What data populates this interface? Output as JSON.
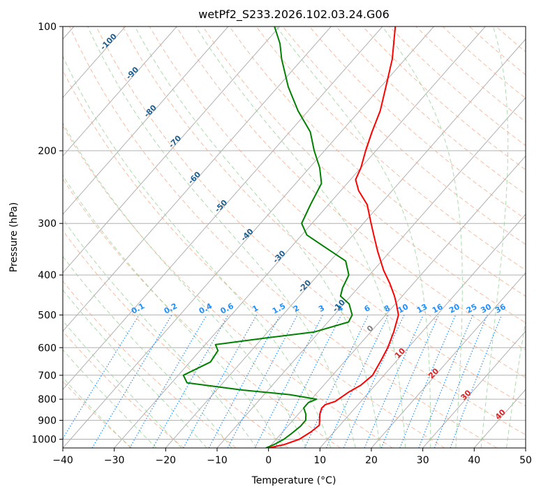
{
  "chart_data": {
    "type": "line",
    "title": "wetPf2_S233.2026.102.03.24.G06",
    "xlabel": "Temperature (°C)",
    "ylabel": "Pressure (hPa)",
    "xlim": [
      -40,
      50
    ],
    "ylim": [
      1050,
      100
    ],
    "y_scale": "log",
    "skew": "skew-T diagram",
    "x_ticks": [
      "−40",
      "−30",
      "−20",
      "−10",
      "0",
      "10",
      "20",
      "30",
      "40",
      "50"
    ],
    "y_ticks": [
      "100",
      "200",
      "300",
      "400",
      "500",
      "600",
      "700",
      "800",
      "900",
      "1000"
    ],
    "grid": true,
    "series": [
      {
        "name": "",
        "color": "#ff0000",
        "role": "temperature",
        "points": [
          [
            1050,
            0.0
          ],
          [
            1030,
            2.5
          ],
          [
            1000,
            4.5
          ],
          [
            960,
            5.5
          ],
          [
            925,
            6.0
          ],
          [
            900,
            5.2
          ],
          [
            870,
            4.2
          ],
          [
            840,
            3.5
          ],
          [
            825,
            3.6
          ],
          [
            810,
            5.0
          ],
          [
            790,
            5.5
          ],
          [
            770,
            6.0
          ],
          [
            740,
            7.2
          ],
          [
            700,
            7.8
          ],
          [
            650,
            7.0
          ],
          [
            600,
            6.0
          ],
          [
            550,
            4.5
          ],
          [
            500,
            2.5
          ],
          [
            470,
            0.2
          ],
          [
            450,
            -1.5
          ],
          [
            420,
            -4.5
          ],
          [
            390,
            -8.0
          ],
          [
            350,
            -12.5
          ],
          [
            320,
            -16.0
          ],
          [
            300,
            -18.5
          ],
          [
            270,
            -22.5
          ],
          [
            250,
            -26.5
          ],
          [
            235,
            -29.0
          ],
          [
            220,
            -30.0
          ],
          [
            200,
            -32.0
          ],
          [
            180,
            -34.0
          ],
          [
            160,
            -36.0
          ],
          [
            140,
            -39.0
          ],
          [
            120,
            -42.5
          ],
          [
            100,
            -47.5
          ]
        ]
      },
      {
        "name": "",
        "color": "#008000",
        "role": "dewpoint",
        "points": [
          [
            1050,
            -0.5
          ],
          [
            1030,
            0.5
          ],
          [
            1000,
            1.5
          ],
          [
            970,
            2.0
          ],
          [
            930,
            2.5
          ],
          [
            900,
            2.5
          ],
          [
            870,
            1.5
          ],
          [
            840,
            0.0
          ],
          [
            815,
            0.0
          ],
          [
            800,
            1.0
          ],
          [
            780,
            -5.0
          ],
          [
            760,
            -15.0
          ],
          [
            730,
            -27.0
          ],
          [
            700,
            -29.0
          ],
          [
            650,
            -26.0
          ],
          [
            610,
            -26.5
          ],
          [
            590,
            -28.0
          ],
          [
            570,
            -20.0
          ],
          [
            550,
            -11.0
          ],
          [
            520,
            -6.0
          ],
          [
            500,
            -6.5
          ],
          [
            470,
            -9.0
          ],
          [
            450,
            -12.0
          ],
          [
            430,
            -13.0
          ],
          [
            400,
            -14.0
          ],
          [
            370,
            -17.0
          ],
          [
            340,
            -24.0
          ],
          [
            320,
            -29.0
          ],
          [
            300,
            -32.0
          ],
          [
            270,
            -33.5
          ],
          [
            240,
            -35.0
          ],
          [
            220,
            -38.0
          ],
          [
            200,
            -42.0
          ],
          [
            180,
            -46.0
          ],
          [
            160,
            -52.0
          ],
          [
            140,
            -58.0
          ],
          [
            120,
            -64.0
          ],
          [
            110,
            -67.0
          ],
          [
            100,
            -71.0
          ]
        ]
      }
    ],
    "mixing_ratio_labels": [
      "0.1",
      "0.2",
      "0.4",
      "0.6",
      "1",
      "1.5",
      "2",
      "3",
      "4",
      "6",
      "8",
      "10",
      "13",
      "16",
      "20",
      "25",
      "30",
      "36"
    ],
    "mixing_ratio_values": [
      0.1,
      0.2,
      0.4,
      0.6,
      1,
      1.5,
      2,
      3,
      4,
      6,
      8,
      10,
      13,
      16,
      20,
      25,
      30,
      36
    ],
    "dry_adiabat_labels": [
      "-100",
      "-90",
      "-80",
      "-70",
      "-60",
      "-50",
      "-40",
      "-30",
      "-20",
      "-10"
    ],
    "dry_adiabat_values": [
      -100,
      -90,
      -80,
      -70,
      -60,
      -50,
      -40,
      -30,
      -20,
      -10
    ],
    "moist_adiabat_labels": [
      "0",
      "10",
      "20",
      "30",
      "40"
    ],
    "moist_adiabat_values": [
      0,
      10,
      20,
      30,
      40
    ]
  },
  "colors": {
    "temperature": "#ff0000",
    "dewpoint": "#008000",
    "isotherm": "#b0b0b0",
    "isobar": "#b0b0b0",
    "dry_adiabat": "#f4a582",
    "moist_adiabat": "#8fcf8f",
    "mixing_ratio": "#1e90ff",
    "moist_label": "#d62728",
    "dry_label": "#1f5f8f"
  }
}
